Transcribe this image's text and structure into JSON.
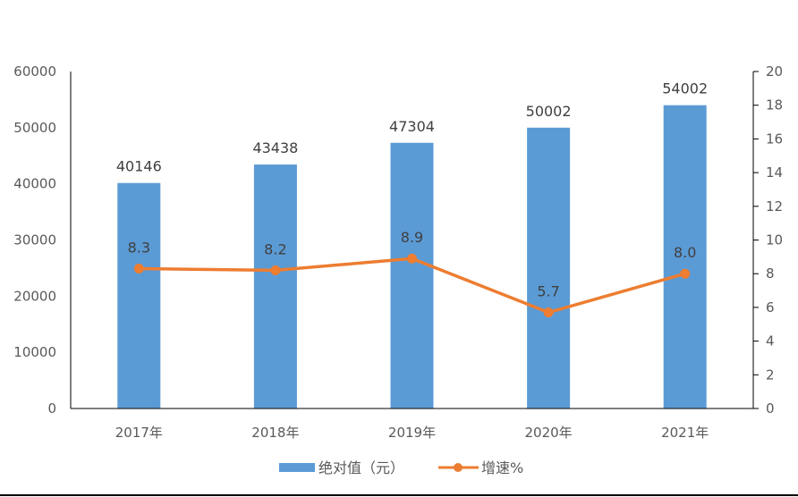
{
  "chart_data": {
    "type": "bar+line",
    "title": "",
    "categories": [
      "2017年",
      "2018年",
      "2019年",
      "2020年",
      "2021年"
    ],
    "series": [
      {
        "name": "绝对值（元）",
        "type": "bar",
        "axis": "left",
        "color": "#5B9BD5",
        "values": [
          40146,
          43438,
          47304,
          50002,
          54002
        ],
        "labels": [
          "40146",
          "43438",
          "47304",
          "50002",
          "54002"
        ]
      },
      {
        "name": "增速%",
        "type": "line",
        "axis": "right",
        "color": "#ED7D31",
        "values": [
          8.3,
          8.2,
          8.9,
          5.7,
          8.0
        ],
        "labels": [
          "8.3",
          "8.2",
          "8.9",
          "5.7",
          "8.0"
        ]
      }
    ],
    "left_axis": {
      "min": 0,
      "max": 60000,
      "step": 10000,
      "ticks": [
        "0",
        "10000",
        "20000",
        "30000",
        "40000",
        "50000",
        "60000"
      ]
    },
    "right_axis": {
      "min": 0,
      "max": 20,
      "step": 2,
      "ticks": [
        "0",
        "2",
        "4",
        "6",
        "8",
        "10",
        "12",
        "14",
        "16",
        "18",
        "20"
      ]
    },
    "xlabel": "",
    "ylabel": "",
    "grid": false,
    "legend_position": "bottom"
  },
  "legend": {
    "bar_label": "绝对值（元）",
    "line_label": "增速%"
  }
}
